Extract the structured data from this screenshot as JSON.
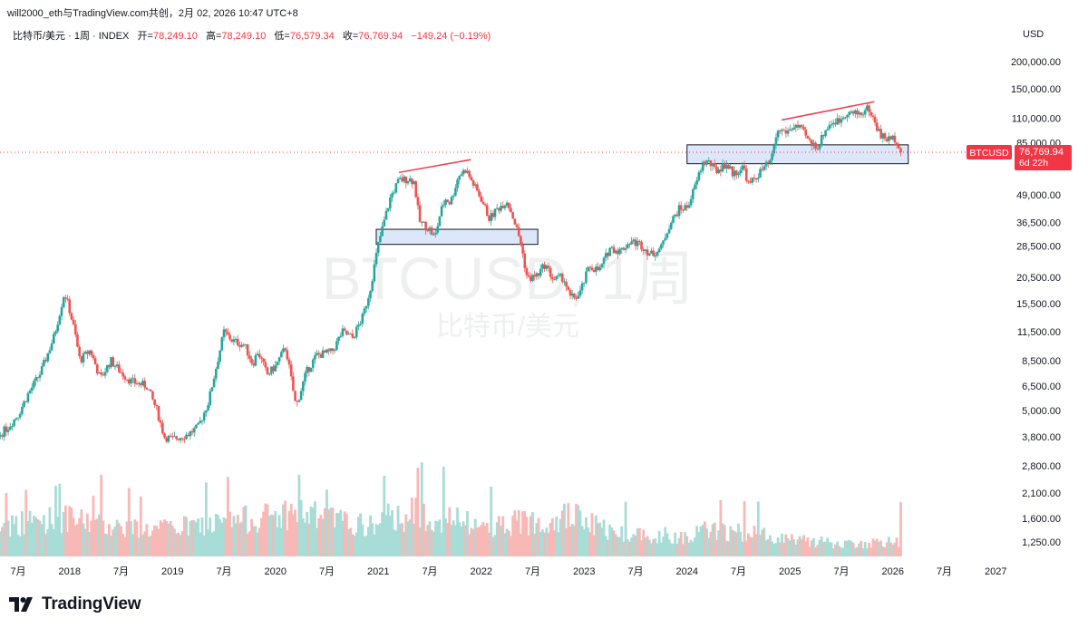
{
  "header": {
    "share_line": "will2000_eth与TradingView.com共创，2月 02, 2026 10:47 UTC+8",
    "symbol_desc": "比特币/美元 · 1周 · INDEX",
    "open_label": "开=",
    "open_value": "78,249.10",
    "high_label": "高=",
    "high_value": "78,249.10",
    "low_label": "低=",
    "low_value": "76,579.34",
    "close_label": "收=",
    "close_value": "76,769.94",
    "change": "−149.24 (−0.19%)",
    "currency": "USD"
  },
  "watermark": {
    "symbol": "BTCUSD, 1周",
    "name": "比特币/美元"
  },
  "price_tag": {
    "symbol": "BTCUSD",
    "price": "76,769.94",
    "countdown": "6d 22h"
  },
  "branding": {
    "wordmark": "TradingView"
  },
  "colors": {
    "up": "#26a69a",
    "down": "#ef5350",
    "volume_up": "#a8dcd6",
    "volume_down": "#f7b8b6",
    "price_line": "#f23645",
    "zone_fill": "#d6e3f8",
    "trendline": "#f23645"
  },
  "chart_data": {
    "type": "candlestick",
    "scale": "log",
    "y_ticks": [
      {
        "label": "200,000.00",
        "value": 200000
      },
      {
        "label": "150,000.00",
        "value": 150000
      },
      {
        "label": "110,000.00",
        "value": 110000
      },
      {
        "label": "85,000.00",
        "value": 85000
      },
      {
        "label": "49,000.00",
        "value": 49000
      },
      {
        "label": "36,500.00",
        "value": 36500
      },
      {
        "label": "28,500.00",
        "value": 28500
      },
      {
        "label": "20,500.00",
        "value": 20500
      },
      {
        "label": "15,500.00",
        "value": 15500
      },
      {
        "label": "11,500.00",
        "value": 11500
      },
      {
        "label": "8,500.00",
        "value": 8500
      },
      {
        "label": "6,500.00",
        "value": 6500
      },
      {
        "label": "5,000.00",
        "value": 5000
      },
      {
        "label": "3,800.00",
        "value": 3800
      },
      {
        "label": "2,800.00",
        "value": 2800
      },
      {
        "label": "2,100.00",
        "value": 2100
      },
      {
        "label": "1,600.00",
        "value": 1600
      },
      {
        "label": "1,250.00",
        "value": 1250
      }
    ],
    "x_ticks": [
      {
        "label": "7月",
        "date": 2017.5
      },
      {
        "label": "2018",
        "date": 2018.0
      },
      {
        "label": "7月",
        "date": 2018.5
      },
      {
        "label": "2019",
        "date": 2019.0
      },
      {
        "label": "7月",
        "date": 2019.5
      },
      {
        "label": "2020",
        "date": 2020.0
      },
      {
        "label": "7月",
        "date": 2020.5
      },
      {
        "label": "2021",
        "date": 2021.0
      },
      {
        "label": "7月",
        "date": 2021.5
      },
      {
        "label": "2022",
        "date": 2022.0
      },
      {
        "label": "7月",
        "date": 2022.5
      },
      {
        "label": "2023",
        "date": 2023.0
      },
      {
        "label": "7月",
        "date": 2023.5
      },
      {
        "label": "2024",
        "date": 2024.0
      },
      {
        "label": "7月",
        "date": 2024.5
      },
      {
        "label": "2025",
        "date": 2025.0
      },
      {
        "label": "7月",
        "date": 2025.5
      },
      {
        "label": "2026",
        "date": 2026.0
      },
      {
        "label": "7月",
        "date": 2026.5
      },
      {
        "label": "2027",
        "date": 2027.0
      }
    ],
    "price_path": [
      [
        2017.0,
        2300
      ],
      [
        2017.1,
        2700
      ],
      [
        2017.25,
        3600
      ],
      [
        2017.4,
        4200
      ],
      [
        2017.5,
        4800
      ],
      [
        2017.6,
        6000
      ],
      [
        2017.72,
        7500
      ],
      [
        2017.85,
        11000
      ],
      [
        2017.95,
        17500
      ],
      [
        2018.0,
        14500
      ],
      [
        2018.05,
        11500
      ],
      [
        2018.1,
        8500
      ],
      [
        2018.2,
        9500
      ],
      [
        2018.3,
        7000
      ],
      [
        2018.4,
        8500
      ],
      [
        2018.5,
        7500
      ],
      [
        2018.6,
        6800
      ],
      [
        2018.75,
        6500
      ],
      [
        2018.85,
        5000
      ],
      [
        2018.92,
        3800
      ],
      [
        2019.0,
        3700
      ],
      [
        2019.15,
        3900
      ],
      [
        2019.25,
        4200
      ],
      [
        2019.35,
        5500
      ],
      [
        2019.45,
        9000
      ],
      [
        2019.5,
        11500
      ],
      [
        2019.58,
        10500
      ],
      [
        2019.7,
        10000
      ],
      [
        2019.78,
        8200
      ],
      [
        2019.83,
        9400
      ],
      [
        2019.92,
        7300
      ],
      [
        2020.0,
        8000
      ],
      [
        2020.1,
        9800
      ],
      [
        2020.2,
        5200
      ],
      [
        2020.3,
        7500
      ],
      [
        2020.4,
        9000
      ],
      [
        2020.55,
        9300
      ],
      [
        2020.65,
        11500
      ],
      [
        2020.75,
        10800
      ],
      [
        2020.85,
        13500
      ],
      [
        2020.92,
        18000
      ],
      [
        2021.0,
        29000
      ],
      [
        2021.05,
        36000
      ],
      [
        2021.12,
        48000
      ],
      [
        2021.2,
        57000
      ],
      [
        2021.3,
        58000
      ],
      [
        2021.35,
        56000
      ],
      [
        2021.4,
        37000
      ],
      [
        2021.5,
        34000
      ],
      [
        2021.55,
        31000
      ],
      [
        2021.6,
        40000
      ],
      [
        2021.65,
        47000
      ],
      [
        2021.7,
        45000
      ],
      [
        2021.78,
        60000
      ],
      [
        2021.85,
        64000
      ],
      [
        2021.92,
        55000
      ],
      [
        2022.0,
        47000
      ],
      [
        2022.08,
        38000
      ],
      [
        2022.15,
        42000
      ],
      [
        2022.25,
        46000
      ],
      [
        2022.3,
        40000
      ],
      [
        2022.38,
        30000
      ],
      [
        2022.45,
        20000
      ],
      [
        2022.55,
        21000
      ],
      [
        2022.62,
        23500
      ],
      [
        2022.7,
        20000
      ],
      [
        2022.8,
        20500
      ],
      [
        2022.86,
        16500
      ],
      [
        2022.95,
        16800
      ],
      [
        2023.05,
        23000
      ],
      [
        2023.15,
        22000
      ],
      [
        2023.25,
        28000
      ],
      [
        2023.35,
        27000
      ],
      [
        2023.45,
        30000
      ],
      [
        2023.55,
        29000
      ],
      [
        2023.65,
        26000
      ],
      [
        2023.75,
        28000
      ],
      [
        2023.82,
        35000
      ],
      [
        2023.92,
        42000
      ],
      [
        2024.0,
        43000
      ],
      [
        2024.07,
        52000
      ],
      [
        2024.15,
        68000
      ],
      [
        2024.2,
        70000
      ],
      [
        2024.28,
        63000
      ],
      [
        2024.38,
        68000
      ],
      [
        2024.45,
        61000
      ],
      [
        2024.55,
        66000
      ],
      [
        2024.6,
        54000
      ],
      [
        2024.68,
        60000
      ],
      [
        2024.75,
        65000
      ],
      [
        2024.82,
        70000
      ],
      [
        2024.86,
        90000
      ],
      [
        2024.9,
        97000
      ],
      [
        2024.97,
        95000
      ],
      [
        2025.05,
        102000
      ],
      [
        2025.12,
        96000
      ],
      [
        2025.2,
        84000
      ],
      [
        2025.28,
        82000
      ],
      [
        2025.33,
        95000
      ],
      [
        2025.4,
        105000
      ],
      [
        2025.48,
        107000
      ],
      [
        2025.55,
        118000
      ],
      [
        2025.62,
        115000
      ],
      [
        2025.7,
        116000
      ],
      [
        2025.76,
        123000
      ],
      [
        2025.8,
        112000
      ],
      [
        2025.88,
        92000
      ],
      [
        2025.95,
        88000
      ],
      [
        2026.02,
        89000
      ],
      [
        2026.06,
        83000
      ],
      [
        2026.09,
        76770
      ]
    ],
    "volume_profile": [
      [
        2017.0,
        0.45
      ],
      [
        2017.9,
        0.65
      ],
      [
        2018.1,
        0.6
      ],
      [
        2018.8,
        0.45
      ],
      [
        2019.4,
        0.55
      ],
      [
        2020.2,
        0.75
      ],
      [
        2020.9,
        0.5
      ],
      [
        2021.1,
        0.65
      ],
      [
        2021.4,
        0.75
      ],
      [
        2022.0,
        0.5
      ],
      [
        2022.45,
        0.6
      ],
      [
        2022.87,
        0.7
      ],
      [
        2023.3,
        0.4
      ],
      [
        2024.0,
        0.35
      ],
      [
        2024.2,
        0.45
      ],
      [
        2024.85,
        0.35
      ],
      [
        2025.5,
        0.2
      ],
      [
        2026.1,
        0.25
      ]
    ],
    "annotations": {
      "zones": [
        {
          "from": 2020.98,
          "to": 2022.55,
          "low": 29000,
          "high": 34000
        },
        {
          "from": 2024.0,
          "to": 2026.15,
          "low": 68000,
          "high": 83000
        }
      ],
      "trendlines": [
        {
          "x1": 2021.2,
          "y1": 62000,
          "x2": 2021.9,
          "y2": 71000
        },
        {
          "x1": 2024.92,
          "y1": 108000,
          "x2": 2025.82,
          "y2": 131000
        }
      ]
    }
  }
}
